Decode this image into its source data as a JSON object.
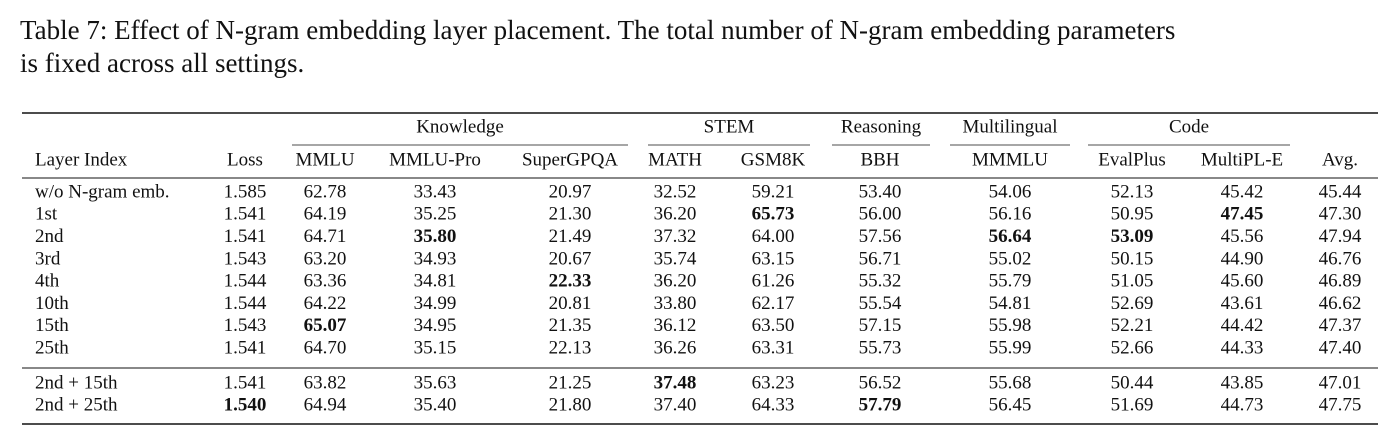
{
  "caption": [
    "Table 7: Effect of N-gram embedding layer placement.  The total number of N-gram embedding parameters",
    "is fixed across all settings."
  ],
  "table": {
    "groups": [
      "Knowledge",
      "STEM",
      "Reasoning",
      "Multilingual",
      "Code"
    ],
    "columns": [
      "Layer Index",
      "Loss",
      "MMLU",
      "MMLU-Pro",
      "SuperGPQA",
      "MATH",
      "GSM8K",
      "BBH",
      "MMMLU",
      "EvalPlus",
      "MultiPL-E",
      "Avg."
    ],
    "sections": [
      [
        [
          "w/o N-gram emb.",
          "1.585",
          "62.78",
          "33.43",
          "20.97",
          "32.52",
          "59.21",
          "53.40",
          "54.06",
          "52.13",
          "45.42",
          "45.44"
        ],
        [
          "1st",
          "1.541",
          "64.19",
          "35.25",
          "21.30",
          "36.20",
          {
            "text": "65.73",
            "bold": true
          },
          "56.00",
          "56.16",
          "50.95",
          {
            "text": "47.45",
            "bold": true
          },
          "47.30"
        ],
        [
          "2nd",
          "1.541",
          "64.71",
          {
            "text": "35.80",
            "bold": true
          },
          "21.49",
          "37.32",
          "64.00",
          "57.56",
          {
            "text": "56.64",
            "bold": true
          },
          {
            "text": "53.09",
            "bold": true
          },
          "45.56",
          "47.94"
        ],
        [
          "3rd",
          "1.543",
          "63.20",
          "34.93",
          "20.67",
          "35.74",
          "63.15",
          "56.71",
          "55.02",
          "50.15",
          "44.90",
          "46.76"
        ],
        [
          "4th",
          "1.544",
          "63.36",
          "34.81",
          {
            "text": "22.33",
            "bold": true
          },
          "36.20",
          "61.26",
          "55.32",
          "55.79",
          "51.05",
          "45.60",
          "46.89"
        ],
        [
          "10th",
          "1.544",
          "64.22",
          "34.99",
          "20.81",
          "33.80",
          "62.17",
          "55.54",
          "54.81",
          "52.69",
          "43.61",
          "46.62"
        ],
        [
          "15th",
          "1.543",
          {
            "text": "65.07",
            "bold": true
          },
          "34.95",
          "21.35",
          "36.12",
          "63.50",
          "57.15",
          "55.98",
          "52.21",
          "44.42",
          "47.37"
        ],
        [
          "25th",
          "1.541",
          "64.70",
          "35.15",
          "22.13",
          "36.26",
          "63.31",
          "55.73",
          "55.99",
          "52.66",
          "44.33",
          "47.40"
        ]
      ],
      [
        [
          "2nd + 15th",
          "1.541",
          "63.82",
          "35.63",
          "21.25",
          {
            "text": "37.48",
            "bold": true
          },
          "63.23",
          "56.52",
          "55.68",
          "50.44",
          "43.85",
          "47.01"
        ],
        [
          "2nd + 25th",
          {
            "text": "1.540",
            "bold": true
          },
          "64.94",
          "35.40",
          "21.80",
          "37.40",
          "64.33",
          {
            "text": "57.79",
            "bold": true
          },
          "56.45",
          "51.69",
          "44.73",
          "47.75"
        ]
      ]
    ]
  }
}
